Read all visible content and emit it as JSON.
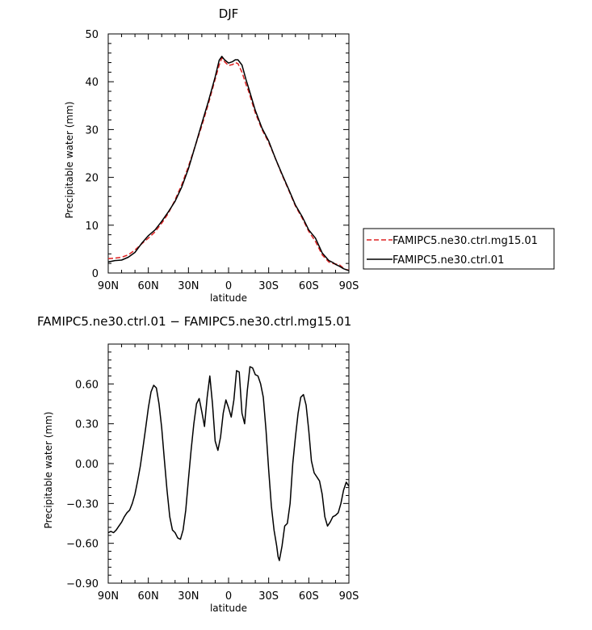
{
  "chart_data": [
    {
      "type": "line",
      "title": "DJF",
      "xlabel": "latitude",
      "ylabel": "Precipitable water (mm)",
      "xlim": [
        90,
        -90
      ],
      "ylim": [
        0,
        50
      ],
      "xticks": [
        90,
        60,
        30,
        0,
        -30,
        -60,
        -90
      ],
      "xtick_labels": [
        "90N",
        "60N",
        "30N",
        "0",
        "30S",
        "60S",
        "90S"
      ],
      "yticks": [
        0,
        10,
        20,
        30,
        40,
        50
      ],
      "ytick_labels": [
        "0",
        "10",
        "20",
        "30",
        "40",
        "50"
      ],
      "grid": false,
      "legend": "right",
      "series": [
        {
          "name": "FAMIPC5.ne30.ctrl.mg15.01",
          "color": "#dd2222",
          "dash": "dashed",
          "x": [
            90,
            85,
            80,
            75,
            70,
            65,
            60,
            55,
            50,
            45,
            40,
            35,
            30,
            25,
            20,
            15,
            10,
            7,
            5,
            3,
            0,
            -3,
            -5,
            -7,
            -10,
            -13,
            -15,
            -20,
            -25,
            -30,
            -35,
            -40,
            -45,
            -50,
            -55,
            -60,
            -65,
            -70,
            -75,
            -78,
            -80,
            -83,
            -86,
            -88,
            -90
          ],
          "y": [
            3.0,
            3.1,
            3.3,
            3.8,
            4.8,
            6.1,
            7.3,
            8.6,
            10.4,
            12.5,
            15.3,
            18.5,
            22.3,
            26.5,
            30.8,
            35.5,
            40.5,
            43.5,
            45.0,
            44.2,
            43.4,
            43.6,
            44.0,
            43.8,
            42.0,
            39.5,
            38.0,
            33.5,
            30.0,
            27.3,
            24.0,
            20.5,
            17.3,
            14.0,
            11.5,
            8.7,
            6.6,
            3.8,
            2.3,
            2.0,
            1.9,
            1.7,
            1.0,
            0.7,
            0.6
          ]
        },
        {
          "name": "FAMIPC5.ne30.ctrl.01",
          "color": "#000000",
          "dash": "solid",
          "x": [
            90,
            85,
            80,
            75,
            70,
            65,
            60,
            55,
            50,
            45,
            40,
            35,
            30,
            25,
            20,
            15,
            10,
            7,
            5,
            3,
            0,
            -3,
            -5,
            -7,
            -10,
            -13,
            -15,
            -20,
            -25,
            -30,
            -35,
            -40,
            -45,
            -50,
            -55,
            -60,
            -65,
            -70,
            -75,
            -78,
            -80,
            -83,
            -86,
            -88,
            -90
          ],
          "y": [
            2.3,
            2.6,
            2.7,
            3.3,
            4.3,
            6.2,
            7.8,
            9.0,
            10.8,
            12.8,
            15.0,
            18.0,
            21.8,
            26.5,
            31.3,
            36.0,
            41.0,
            44.5,
            45.3,
            44.6,
            43.9,
            44.2,
            44.6,
            44.6,
            43.5,
            40.5,
            38.7,
            34.0,
            30.3,
            27.6,
            24.0,
            20.7,
            17.5,
            14.2,
            11.8,
            9.0,
            7.3,
            4.2,
            2.6,
            2.2,
            1.8,
            1.4,
            0.9,
            0.7,
            0.5
          ]
        }
      ]
    },
    {
      "type": "line",
      "title": "FAMIPC5.ne30.ctrl.01 − FAMIPC5.ne30.ctrl.mg15.01",
      "xlabel": "latitude",
      "ylabel": "Precipitable water (mm)",
      "xlim": [
        90,
        -90
      ],
      "ylim": [
        -0.9,
        0.9
      ],
      "xticks": [
        90,
        60,
        30,
        0,
        -30,
        -60,
        -90
      ],
      "xtick_labels": [
        "90N",
        "60N",
        "30N",
        "0",
        "30S",
        "60S",
        "90S"
      ],
      "yticks": [
        -0.9,
        -0.6,
        -0.3,
        0.0,
        0.3,
        0.6
      ],
      "ytick_labels": [
        "−0.90",
        "−0.60",
        "−0.30",
        "0.00",
        "0.30",
        "0.60"
      ],
      "grid": false,
      "series": [
        {
          "color": "#000000",
          "dash": "solid",
          "x": [
            90,
            88,
            86,
            84,
            82,
            80,
            78,
            76,
            74,
            72,
            70,
            68,
            66,
            64,
            62,
            60,
            58,
            56,
            54,
            52,
            50,
            48,
            46,
            44,
            42,
            40,
            38,
            36,
            34,
            32,
            30,
            28,
            26,
            24,
            22,
            20,
            18,
            16,
            14,
            12,
            10,
            8,
            6,
            4,
            2,
            0,
            -2,
            -4,
            -6,
            -8,
            -10,
            -12,
            -14,
            -16,
            -18,
            -20,
            -22,
            -24,
            -26,
            -28,
            -30,
            -32,
            -34,
            -36,
            -37,
            -38,
            -40,
            -42,
            -44,
            -46,
            -48,
            -50,
            -52,
            -54,
            -56,
            -58,
            -60,
            -62,
            -64,
            -66,
            -68,
            -70,
            -72,
            -74,
            -76,
            -78,
            -80,
            -82,
            -84,
            -86,
            -88,
            -90
          ],
          "y": [
            -0.52,
            -0.51,
            -0.52,
            -0.5,
            -0.47,
            -0.44,
            -0.4,
            -0.37,
            -0.35,
            -0.3,
            -0.23,
            -0.13,
            -0.02,
            0.12,
            0.27,
            0.42,
            0.54,
            0.59,
            0.57,
            0.45,
            0.27,
            0.03,
            -0.2,
            -0.4,
            -0.5,
            -0.52,
            -0.56,
            -0.57,
            -0.5,
            -0.35,
            -0.12,
            0.1,
            0.3,
            0.45,
            0.49,
            0.39,
            0.28,
            0.5,
            0.66,
            0.45,
            0.17,
            0.1,
            0.2,
            0.38,
            0.48,
            0.42,
            0.35,
            0.48,
            0.7,
            0.69,
            0.38,
            0.3,
            0.55,
            0.73,
            0.72,
            0.67,
            0.66,
            0.6,
            0.5,
            0.25,
            -0.05,
            -0.32,
            -0.5,
            -0.62,
            -0.7,
            -0.73,
            -0.62,
            -0.47,
            -0.45,
            -0.3,
            0.0,
            0.2,
            0.38,
            0.5,
            0.52,
            0.44,
            0.25,
            0.02,
            -0.07,
            -0.1,
            -0.13,
            -0.23,
            -0.4,
            -0.47,
            -0.44,
            -0.4,
            -0.39,
            -0.37,
            -0.3,
            -0.2,
            -0.14,
            -0.17
          ]
        }
      ]
    }
  ]
}
